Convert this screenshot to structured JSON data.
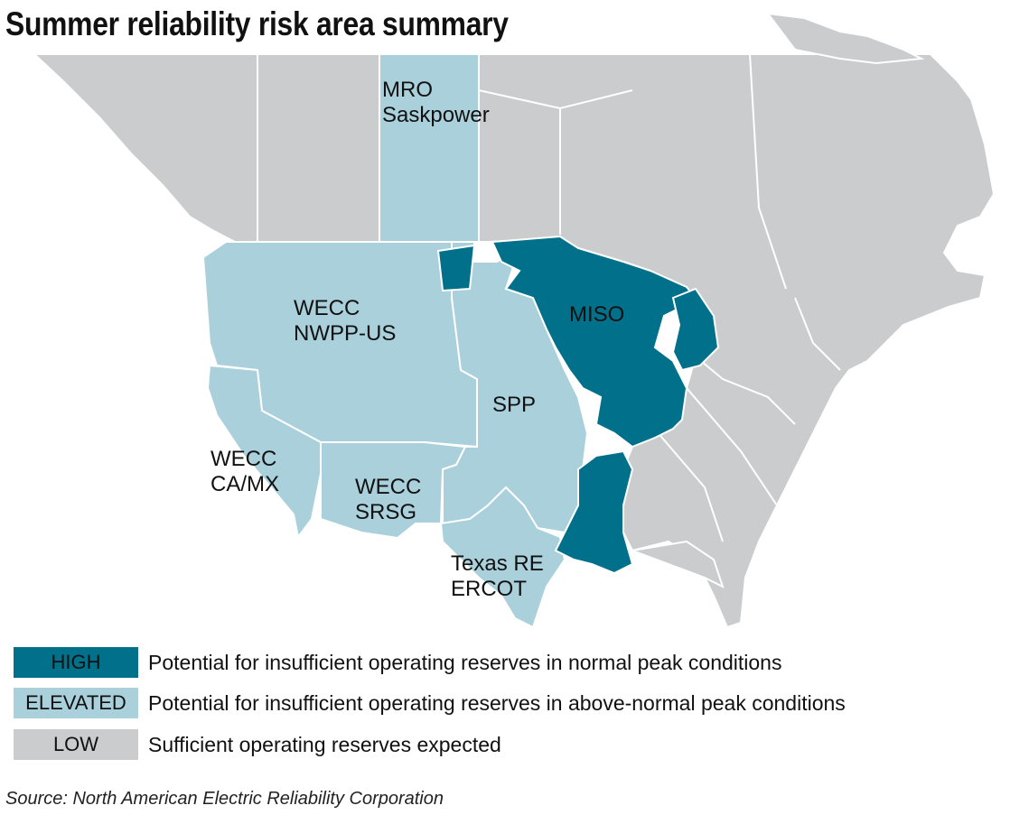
{
  "title": "Summer reliability risk area summary",
  "colors": {
    "high": "#01718b",
    "elevated": "#a9d0db",
    "low": "#cbccce",
    "border": "#ffffff"
  },
  "regions": [
    {
      "name": "MRO Saskpower",
      "lines": [
        "MRO",
        "Saskpower"
      ],
      "risk": "elevated"
    },
    {
      "name": "WECC NWPP-US",
      "lines": [
        "WECC",
        "NWPP-US"
      ],
      "risk": "elevated"
    },
    {
      "name": "MISO",
      "lines": [
        "MISO"
      ],
      "risk": "high"
    },
    {
      "name": "SPP",
      "lines": [
        "SPP"
      ],
      "risk": "elevated"
    },
    {
      "name": "WECC CA/MX",
      "lines": [
        "WECC",
        "CA/MX"
      ],
      "risk": "elevated"
    },
    {
      "name": "WECC SRSG",
      "lines": [
        "WECC",
        "SRSG"
      ],
      "risk": "elevated"
    },
    {
      "name": "Texas RE ERCOT",
      "lines": [
        "Texas RE",
        "ERCOT"
      ],
      "risk": "elevated"
    }
  ],
  "legend": [
    {
      "label": "HIGH",
      "risk": "high",
      "text": "Potential for insufficient operating reserves in normal peak conditions"
    },
    {
      "label": "ELEVATED",
      "risk": "elevated",
      "text": "Potential for insufficient operating reserves in above-normal peak conditions"
    },
    {
      "label": "LOW",
      "risk": "low",
      "text": "Sufficient operating reserves expected"
    }
  ],
  "source": "Source: North American Electric Reliability Corporation"
}
